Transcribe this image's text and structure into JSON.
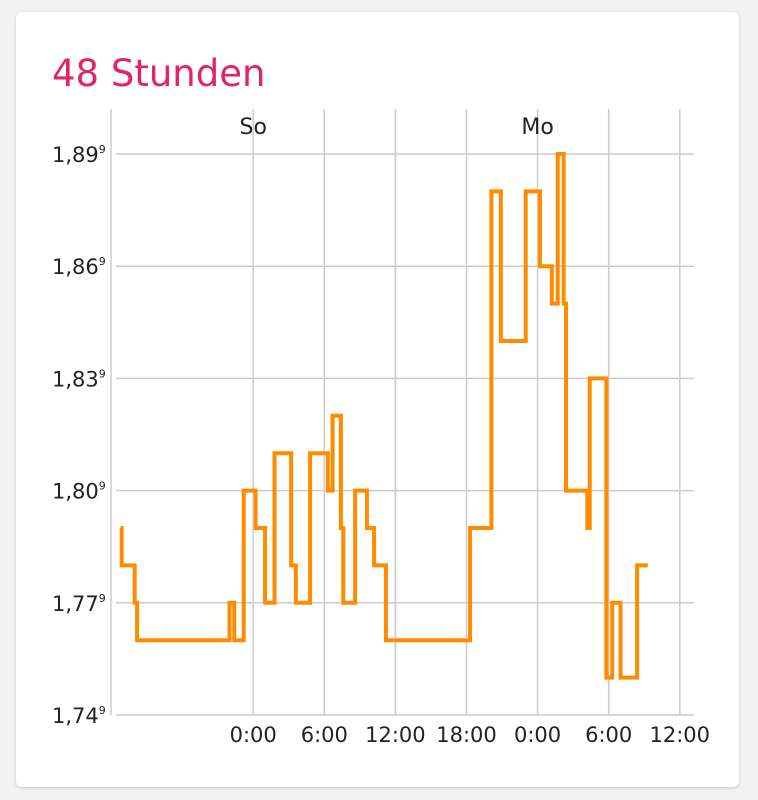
{
  "card": {
    "title": "48 Stunden",
    "title_color": "#e02465"
  },
  "chart_data": {
    "type": "line",
    "step": true,
    "line_color": "#ff8c00",
    "grid_color": "#cccccc",
    "grid": true,
    "ylim": [
      1.74,
      1.89
    ],
    "y_ticks": [
      {
        "value": 1.89,
        "label": "1,89"
      },
      {
        "value": 1.86,
        "label": "1,86"
      },
      {
        "value": 1.83,
        "label": "1,83"
      },
      {
        "value": 1.8,
        "label": "1,80"
      },
      {
        "value": 1.77,
        "label": "1,77"
      },
      {
        "value": 1.74,
        "label": "1,74"
      }
    ],
    "y_tick_suffix": "9",
    "xlim": [
      -11.2,
      37.2
    ],
    "x_ticks": [
      {
        "value": 0,
        "label": "0:00"
      },
      {
        "value": 6,
        "label": "6:00"
      },
      {
        "value": 12,
        "label": "12:00"
      },
      {
        "value": 18,
        "label": "18:00"
      },
      {
        "value": 24,
        "label": "0:00"
      },
      {
        "value": 30,
        "label": "6:00"
      },
      {
        "value": 36,
        "label": "12:00"
      }
    ],
    "day_labels": [
      {
        "value": 12,
        "label": "So"
      },
      {
        "value": 36,
        "label": "Mo"
      }
    ],
    "series": [
      {
        "points": [
          [
            -11.2,
            1.79
          ],
          [
            -11.1,
            1.78
          ],
          [
            -10.0,
            1.77
          ],
          [
            -9.8,
            1.76
          ],
          [
            -3.6,
            1.76
          ],
          [
            -2.0,
            1.77
          ],
          [
            -1.6,
            1.76
          ],
          [
            -0.8,
            1.8
          ],
          [
            0.2,
            1.79
          ],
          [
            1.0,
            1.77
          ],
          [
            1.8,
            1.81
          ],
          [
            3.2,
            1.78
          ],
          [
            3.6,
            1.77
          ],
          [
            4.8,
            1.81
          ],
          [
            6.3,
            1.8
          ],
          [
            6.7,
            1.82
          ],
          [
            7.4,
            1.79
          ],
          [
            7.6,
            1.77
          ],
          [
            8.6,
            1.8
          ],
          [
            9.6,
            1.79
          ],
          [
            10.2,
            1.78
          ],
          [
            11.2,
            1.76
          ],
          [
            18.3,
            1.79
          ],
          [
            20.1,
            1.88
          ],
          [
            20.9,
            1.84
          ],
          [
            23.0,
            1.88
          ],
          [
            24.2,
            1.86
          ],
          [
            25.2,
            1.85
          ],
          [
            25.7,
            1.89
          ],
          [
            26.2,
            1.85
          ],
          [
            26.4,
            1.8
          ],
          [
            28.2,
            1.79
          ],
          [
            28.4,
            1.83
          ],
          [
            29.8,
            1.75
          ],
          [
            30.3,
            1.77
          ],
          [
            31.0,
            1.75
          ],
          [
            32.4,
            1.78
          ],
          [
            33.3,
            1.78
          ]
        ]
      }
    ]
  }
}
